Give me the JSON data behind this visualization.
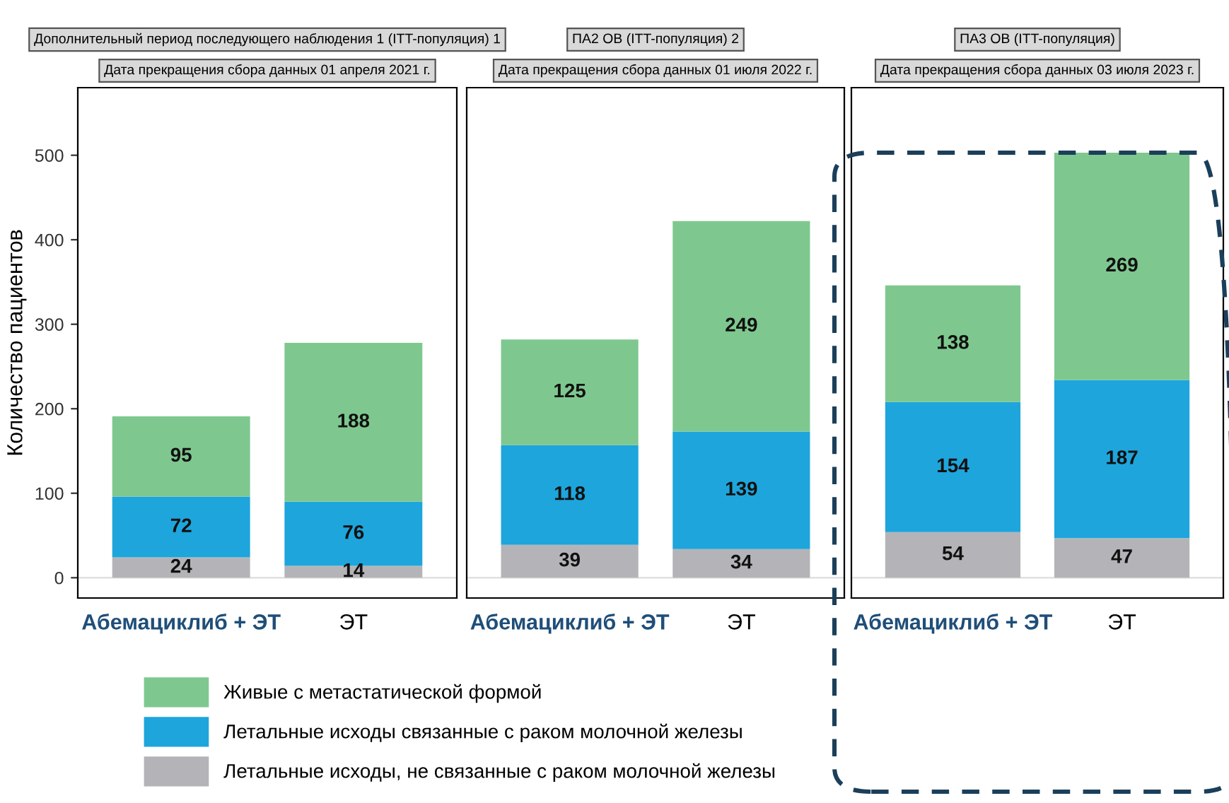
{
  "chart_data": [
    {
      "type": "bar",
      "stacked": true,
      "title": "Дополнительный период последующего наблюдения 1 (ITT-популяция) 1",
      "subtitle": "Дата прекращения сбора данных 01 апреля 2021 г.",
      "ylabel": "Количество пациентов",
      "categories": [
        "Абемациклиб + ЭТ",
        "ЭТ"
      ],
      "ylim": [
        -24,
        580
      ],
      "yticks": [
        0,
        100,
        200,
        300,
        400,
        500
      ],
      "data_labels": true,
      "legend": "bottom",
      "series": [
        {
          "name": "Летальные исходы, не связанные с раком молочной железы",
          "color": "#b4b4b8",
          "values": [
            24,
            14
          ]
        },
        {
          "name": "Летальные исходы связанные с раком молочной железы",
          "color": "#1ea5dc",
          "values": [
            72,
            76
          ]
        },
        {
          "name": "Живые с метастатической формой",
          "color": "#7ec88f",
          "values": [
            95,
            188
          ]
        }
      ]
    },
    {
      "type": "bar",
      "stacked": true,
      "title": "ПА2 OВ (ITT-популяция) 2",
      "subtitle": "Дата прекращения сбора данных 01 июля 2022 г.",
      "categories": [
        "Абемациклиб + ЭТ",
        "ЭТ"
      ],
      "ylim": [
        -24,
        580
      ],
      "yticks": [
        0,
        100,
        200,
        300,
        400,
        500
      ],
      "tick_labels": "x",
      "data_labels": true,
      "series": [
        {
          "color": "#b4b4b8",
          "values": [
            39,
            34
          ]
        },
        {
          "color": "#1ea5dc",
          "values": [
            118,
            139
          ]
        },
        {
          "color": "#7ec88f",
          "values": [
            125,
            249
          ]
        }
      ]
    },
    {
      "type": "bar",
      "stacked": true,
      "title": "ПА3 OВ (ITT-популяция)",
      "subtitle": "Дата прекращения сбора данных 03 июля 2023 г.",
      "categories": [
        "Абемациклиб + ЭТ",
        "ЭТ"
      ],
      "ylim": [
        -24,
        580
      ],
      "yticks": [
        0,
        100,
        200,
        300,
        400,
        500
      ],
      "tick_labels": "x",
      "data_labels": true,
      "series": [
        {
          "color": "#b4b4b8",
          "values": [
            54,
            47
          ]
        },
        {
          "color": "#1ea5dc",
          "values": [
            154,
            187
          ]
        },
        {
          "color": "#7ec88f",
          "values": [
            138,
            269
          ]
        }
      ]
    }
  ]
}
